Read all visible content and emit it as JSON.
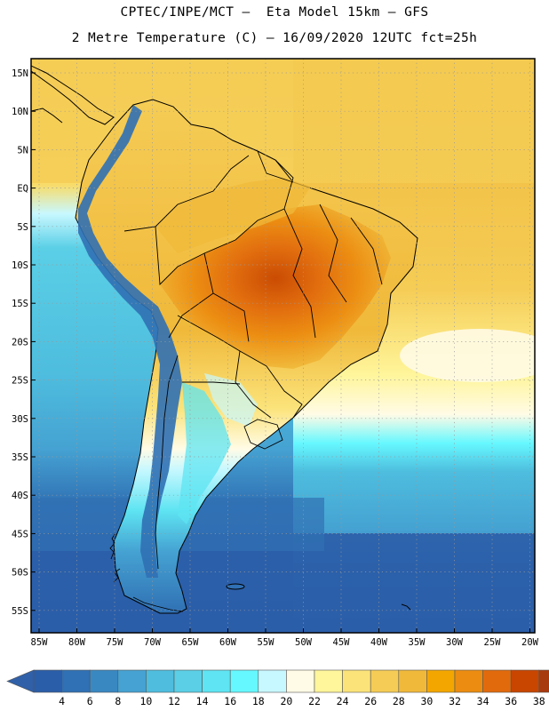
{
  "header": {
    "line1": "CPTEC/INPE/MCT –  Eta Model 15km – GFS",
    "line2": "2 Metre Temperature (C) – 16/09/2020 12UTC fct=25h"
  },
  "axes": {
    "lat_labels": [
      "15N",
      "10N",
      "5N",
      "EQ",
      "5S",
      "10S",
      "15S",
      "20S",
      "25S",
      "30S",
      "35S",
      "40S",
      "45S",
      "50S",
      "55S"
    ],
    "lon_labels": [
      "85W",
      "80W",
      "75W",
      "70W",
      "65W",
      "60W",
      "55W",
      "50W",
      "45W",
      "40W",
      "35W",
      "30W",
      "25W",
      "20W"
    ]
  },
  "colorbar": {
    "labels": [
      "4",
      "6",
      "8",
      "10",
      "12",
      "14",
      "16",
      "18",
      "20",
      "22",
      "24",
      "26",
      "28",
      "30",
      "32",
      "34",
      "36",
      "38"
    ],
    "colors": [
      "#2b5ea8",
      "#3070b4",
      "#3a88c2",
      "#45a2d2",
      "#4ebdde",
      "#5acfe6",
      "#5ee4f2",
      "#66f8ff",
      "#c8f8ff",
      "#fffbe6",
      "#fff59a",
      "#fbe37a",
      "#f5cc55",
      "#f0b93a",
      "#f4a600",
      "#ec8c10",
      "#e16a0c",
      "#c84600",
      "#a83a10"
    ],
    "over_color": "#a83a10",
    "under_color": "#3060a8"
  },
  "map": {
    "ocean_south_color": "#2b5ea8",
    "ocean_mid_color": "#45a2d2",
    "ocean_north_color": "#f5cc55",
    "land_cool_color": "#fff59a",
    "land_hot_color": "#e16a0c",
    "andes_color": "#3070b4",
    "border_color": "#000000"
  }
}
